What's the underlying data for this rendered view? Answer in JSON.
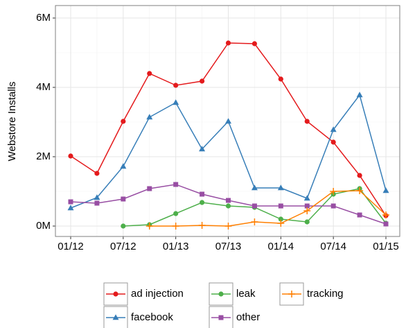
{
  "chart_data": {
    "type": "line",
    "y_label": "Webstore Installs",
    "categories": [
      "01/12",
      null,
      "07/12",
      null,
      "01/13",
      null,
      "07/13",
      null,
      "01/14",
      null,
      "07/14",
      null,
      "01/15"
    ],
    "ylim": [
      -0.3,
      6.36
    ],
    "yticks": [
      {
        "value": 0,
        "label": "0M"
      },
      {
        "value": 2,
        "label": "2M"
      },
      {
        "value": 4,
        "label": "4M"
      },
      {
        "value": 6,
        "label": "6M"
      }
    ],
    "grid": true,
    "legend_position": "bottom",
    "series": [
      {
        "name": "ad injection",
        "color": "#e41a1c",
        "marker": "circle",
        "values": [
          2.02,
          1.52,
          3.02,
          4.4,
          4.06,
          4.18,
          5.28,
          5.26,
          4.24,
          3.02,
          2.42,
          1.46,
          0.3
        ]
      },
      {
        "name": "facebook",
        "color": "#377eb8",
        "marker": "triangle",
        "values": [
          0.52,
          0.82,
          1.72,
          3.14,
          3.56,
          2.22,
          3.02,
          1.1,
          1.1,
          0.8,
          2.78,
          3.78,
          1.02
        ]
      },
      {
        "name": "leak",
        "color": "#4daf4a",
        "marker": "circle",
        "values": [
          null,
          null,
          0,
          0.04,
          0.36,
          0.68,
          0.58,
          0.54,
          0.2,
          0.12,
          0.92,
          1.08,
          0.08
        ]
      },
      {
        "name": "other",
        "color": "#984ea3",
        "marker": "square",
        "values": [
          0.7,
          0.66,
          0.78,
          1.08,
          1.2,
          0.92,
          0.74,
          0.58,
          0.58,
          0.58,
          0.58,
          0.32,
          0.06
        ]
      },
      {
        "name": "tracking",
        "color": "#ff7f00",
        "marker": "plus",
        "values": [
          null,
          null,
          null,
          0,
          0,
          0.02,
          0,
          0.12,
          0.08,
          0.44,
          1.0,
          1.02,
          0.32
        ]
      }
    ]
  }
}
